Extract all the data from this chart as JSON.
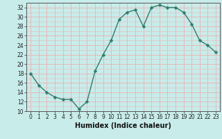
{
  "x": [
    0,
    1,
    2,
    3,
    4,
    5,
    6,
    7,
    8,
    9,
    10,
    11,
    12,
    13,
    14,
    15,
    16,
    17,
    18,
    19,
    20,
    21,
    22,
    23
  ],
  "y": [
    18,
    15.5,
    14,
    13,
    12.5,
    12.5,
    10.5,
    12,
    18.5,
    22,
    25,
    29.5,
    31,
    31.5,
    28,
    32,
    32.5,
    32,
    32,
    31,
    28.5,
    25,
    24,
    22.5
  ],
  "line_color": "#2d7d6e",
  "marker_color": "#2d7d6e",
  "bg_color": "#c8ecea",
  "major_grid_color": "#e8b8b8",
  "minor_grid_color": "#e8b8b8",
  "xlabel": "Humidex (Indice chaleur)",
  "ylim": [
    10,
    33
  ],
  "xlim": [
    -0.5,
    23.5
  ],
  "yticks": [
    10,
    12,
    14,
    16,
    18,
    20,
    22,
    24,
    26,
    28,
    30,
    32
  ],
  "xticks": [
    0,
    1,
    2,
    3,
    4,
    5,
    6,
    7,
    8,
    9,
    10,
    11,
    12,
    13,
    14,
    15,
    16,
    17,
    18,
    19,
    20,
    21,
    22,
    23
  ],
  "axis_fontsize": 5.5,
  "label_fontsize": 7.0,
  "spine_color": "#555555",
  "tick_color": "#222222",
  "marker_size": 2.5,
  "line_width": 1.0
}
